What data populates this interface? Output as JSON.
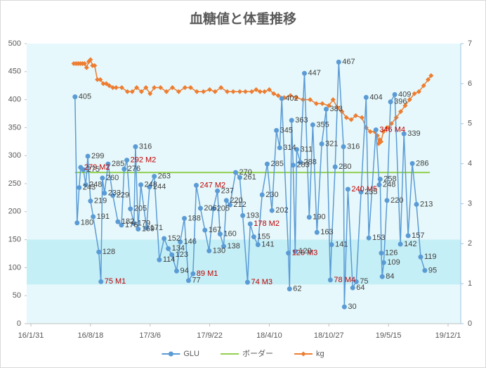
{
  "chart_data": {
    "type": "line",
    "title": "血糖値と体重推移",
    "xlim": [
      "16/1/31",
      "19/12/1"
    ],
    "xticks": [
      "16/1/31",
      "16/8/18",
      "17/3/6",
      "17/9/22",
      "18/4/10",
      "18/10/27",
      "19/5/15",
      "19/12/1"
    ],
    "ylim": [
      0,
      500
    ],
    "yticks": [
      0,
      50,
      100,
      150,
      200,
      250,
      300,
      350,
      400,
      450,
      500
    ],
    "y2lim": [
      0,
      7
    ],
    "y2ticks": [
      0,
      1,
      2,
      3,
      4,
      5,
      6,
      7
    ],
    "band": [
      70,
      150
    ],
    "band_color": "#c5eff6",
    "plot_background": "#e6f8fb",
    "highlight_label_color": "#c00000",
    "legend": "bottom",
    "series": [
      {
        "name": "GLU",
        "color": "#5b9bd5",
        "marker": "circle",
        "x": [
          "16/6/27",
          "16/7/4",
          "16/7/11",
          "16/7/16",
          "16/7/25",
          "16/8/2",
          "16/8/9",
          "16/8/18",
          "16/8/27",
          "16/9/15",
          "16/9/22",
          "16/9/27",
          "16/10/4",
          "16/10/16",
          "16/11/1",
          "16/11/18",
          "16/11/30",
          "16/12/9",
          "16/12/18",
          "16/12/30",
          "17/1/11",
          "17/1/16",
          "17/1/25",
          "17/2/3",
          "17/2/22",
          "17/3/4",
          "17/3/20",
          "17/4/6",
          "17/4/22",
          "17/5/6",
          "17/5/18",
          "17/6/3",
          "17/6/15",
          "17/6/29",
          "17/7/13",
          "17/7/28",
          "17/8/8",
          "17/8/22",
          "17/9/6",
          "17/9/20",
          "17/10/4",
          "17/10/18",
          "17/10/27",
          "17/11/8",
          "17/11/17",
          "17/11/29",
          "17/12/18",
          "18/1/1",
          "18/1/11",
          "18/1/27",
          "18/2/5",
          "18/2/17",
          "18/3/3",
          "18/3/17",
          "18/4/3",
          "18/4/19",
          "18/5/4",
          "18/5/15",
          "18/5/22",
          "18/6/13",
          "18/6/17",
          "18/6/24",
          "18/6/29",
          "18/7/6",
          "18/7/11",
          "18/7/23",
          "18/8/6",
          "18/8/22",
          "18/9/3",
          "18/9/17",
          "18/10/3",
          "18/10/18",
          "18/11/1",
          "18/11/5",
          "18/11/17",
          "18/11/29",
          "18/12/15",
          "18/12/18",
          "18/12/30",
          "19/1/15",
          "19/1/27",
          "19/2/12",
          "19/3/1",
          "19/3/10",
          "19/4/3",
          "19/4/14",
          "19/4/17",
          "19/4/21",
          "19/4/24",
          "19/4/29",
          "19/5/10",
          "19/5/22",
          "19/6/5",
          "19/6/24",
          "19/7/6",
          "19/7/20",
          "19/8/3",
          "19/8/17",
          "19/8/31",
          "19/9/14"
        ],
        "values": [
          405,
          180,
          243,
          279,
          275,
          248,
          299,
          219,
          191,
          128,
          75,
          260,
          233,
          285,
          229,
          182,
          176,
          276,
          292,
          205,
          179,
          316,
          169,
          248,
          171,
          244,
          263,
          114,
          152,
          134,
          123,
          94,
          146,
          188,
          77,
          89,
          247,
          206,
          167,
          130,
          205,
          237,
          160,
          138,
          220,
          212,
          270,
          261,
          193,
          74,
          178,
          155,
          141,
          230,
          285,
          202,
          345,
          314,
          402,
          126,
          62,
          363,
          283,
          129,
          311,
          288,
          447,
          190,
          355,
          163,
          321,
          383,
          78,
          141,
          280,
          467,
          316,
          30,
          240,
          64,
          75,
          235,
          404,
          153,
          346,
          248,
          258,
          126,
          84,
          109,
          220,
          396,
          409,
          142,
          339,
          157,
          286,
          213,
          119,
          95
        ],
        "value_labels": [
          "405",
          "180",
          "243",
          "279 M2",
          "275",
          "248",
          "299",
          "219",
          "191",
          "128",
          "75 M1",
          "260",
          "233",
          "285",
          "229",
          "182",
          "176",
          "276",
          "292 M2",
          "205",
          "179",
          "316",
          "169",
          "248",
          "171",
          "244",
          "263",
          "114",
          "152",
          "134",
          "123",
          "94",
          "146",
          "188",
          "77",
          "89 M1",
          "247 M2",
          "206",
          "167",
          "130",
          "205",
          "237",
          "160",
          "138",
          "220",
          "212",
          "270",
          "261",
          "193",
          "74 M3",
          "178 M2",
          "155",
          "141",
          "230",
          "285",
          "202",
          "345",
          "314",
          "402",
          "126 M3",
          "62",
          "363",
          "283",
          "129",
          "311",
          "288",
          "447",
          "190",
          "355",
          "163",
          "321",
          "383",
          "78 M4",
          "141",
          "280",
          "467",
          "316",
          "30",
          "240 M5",
          "64",
          "75",
          "235",
          "404",
          "153",
          "346 M4",
          "248",
          "258",
          "126",
          "84",
          "109",
          "220",
          "396",
          "409",
          "142",
          "339",
          "157",
          "286",
          "213",
          "119",
          "95"
        ]
      },
      {
        "name": "ボーダー",
        "color": "#92d050",
        "marker": "none",
        "x": [
          "16/6/27",
          "19/10/1"
        ],
        "values": [
          270,
          270
        ]
      },
      {
        "name": "kg",
        "color": "#ed7d31",
        "marker": "diamond",
        "axis": "y2",
        "x": [
          "16/6/23",
          "16/7/1",
          "16/7/8",
          "16/7/15",
          "16/7/22",
          "16/7/29",
          "16/8/5",
          "16/8/12",
          "16/8/18",
          "16/8/25",
          "16/9/1",
          "16/9/10",
          "16/9/20",
          "16/9/30",
          "16/10/10",
          "16/10/20",
          "16/11/1",
          "16/11/12",
          "16/12/1",
          "16/12/20",
          "17/1/5",
          "17/1/20",
          "17/2/5",
          "17/2/20",
          "17/3/6",
          "17/3/20",
          "17/4/10",
          "17/4/30",
          "17/5/20",
          "17/6/10",
          "17/7/1",
          "17/7/20",
          "17/8/10",
          "17/9/1",
          "17/9/22",
          "17/10/10",
          "17/10/30",
          "17/11/20",
          "17/12/10",
          "18/1/1",
          "18/1/20",
          "18/2/10",
          "18/2/25",
          "18/3/10",
          "18/3/25",
          "18/4/10",
          "18/4/25",
          "18/5/10",
          "18/5/30",
          "18/6/20",
          "18/7/10",
          "18/8/1",
          "18/8/25",
          "18/9/15",
          "18/10/5",
          "18/10/27",
          "18/11/10",
          "18/11/25",
          "18/12/10",
          "18/12/25",
          "19/1/10",
          "19/1/25",
          "19/2/15",
          "19/3/1",
          "19/3/15",
          "19/3/30",
          "19/4/8",
          "19/4/12",
          "19/4/16",
          "19/4/20",
          "19/4/28",
          "19/5/10",
          "19/5/25",
          "19/6/10",
          "19/6/25",
          "19/7/10",
          "19/7/25",
          "19/8/10",
          "19/8/25",
          "19/9/10",
          "19/9/25",
          "19/10/5"
        ],
        "values": [
          6.5,
          6.5,
          6.5,
          6.5,
          6.5,
          6.5,
          6.4,
          6.55,
          6.6,
          6.45,
          6.45,
          6.1,
          6.1,
          6.0,
          6.0,
          5.95,
          5.9,
          5.9,
          5.9,
          5.8,
          5.8,
          5.9,
          5.8,
          5.9,
          5.75,
          5.9,
          5.9,
          5.8,
          5.9,
          5.8,
          5.9,
          5.9,
          5.8,
          5.8,
          5.85,
          5.8,
          5.9,
          5.8,
          5.8,
          5.8,
          5.8,
          5.8,
          5.85,
          5.8,
          5.8,
          5.85,
          5.75,
          5.7,
          5.65,
          5.7,
          5.65,
          5.6,
          5.6,
          5.5,
          5.5,
          5.45,
          5.6,
          5.4,
          5.3,
          5.15,
          5.1,
          5.2,
          5.15,
          4.9,
          4.8,
          4.8,
          4.7,
          4.5,
          4.6,
          4.55,
          4.8,
          4.9,
          5.0,
          5.15,
          5.3,
          5.45,
          5.6,
          5.75,
          5.8,
          5.95,
          6.1,
          6.2
        ]
      }
    ]
  }
}
